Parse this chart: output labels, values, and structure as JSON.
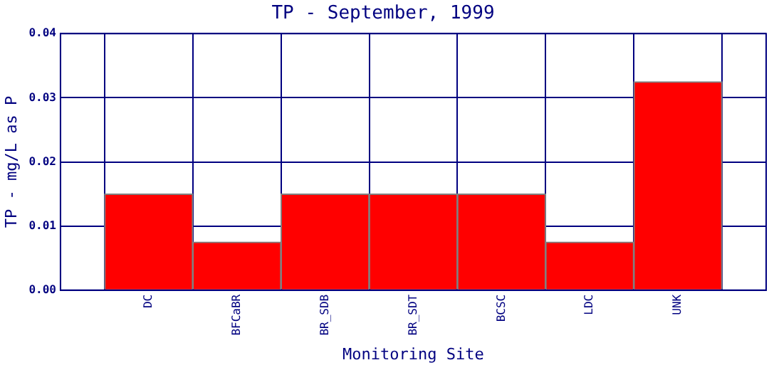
{
  "chart_data": {
    "type": "bar",
    "title": "TP - September, 1999",
    "xlabel": "Monitoring Site",
    "ylabel": "TP - mg/L as P",
    "categories": [
      "DC",
      "BFCaBR",
      "BR_SDB",
      "BR_SDT",
      "BCSC",
      "LDC",
      "UNK"
    ],
    "values": [
      0.015,
      0.0075,
      0.015,
      0.015,
      0.015,
      0.0075,
      0.0325
    ],
    "color": "#ff0000",
    "ylim": [
      0,
      0.04
    ],
    "yticks": [
      {
        "value": 0,
        "label": "0.00"
      },
      {
        "value": 0.01,
        "label": "0.01"
      },
      {
        "value": 0.02,
        "label": "0.02"
      },
      {
        "value": 0.03,
        "label": "0.03"
      },
      {
        "value": 0.04,
        "label": "0.04"
      }
    ],
    "grid": true,
    "legend": false
  }
}
